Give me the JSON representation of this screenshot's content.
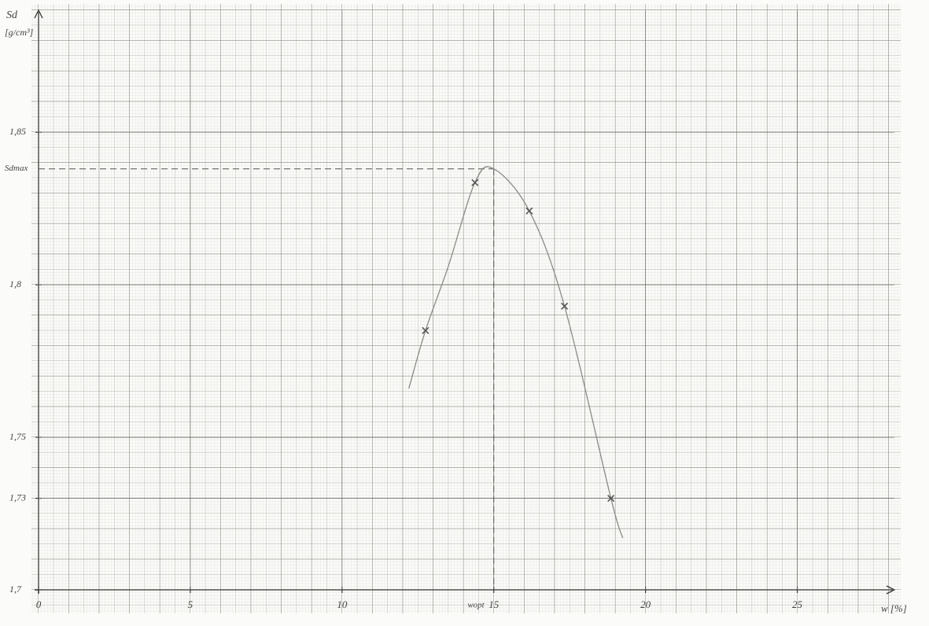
{
  "chart_data": {
    "type": "scatter",
    "y_label": "Sd",
    "y_unit": "[g/cm³]",
    "x_label": "w [%]",
    "xlim": [
      0,
      28.2
    ],
    "ylim": [
      1.7,
      1.89
    ],
    "xticks": [
      0,
      5,
      10,
      15,
      20,
      25
    ],
    "yticks": [
      {
        "value": 1.7,
        "label": "1,7"
      },
      {
        "value": 1.73,
        "label": "1,73"
      },
      {
        "value": 1.75,
        "label": "1,75"
      },
      {
        "value": 1.8,
        "label": "1,8"
      },
      {
        "value": 1.85,
        "label": "1,85"
      }
    ],
    "grid": true,
    "series": [
      {
        "kind": "points",
        "color": "#555555",
        "x": [
          12.75,
          14.38,
          16.17,
          17.33,
          18.86
        ],
        "values": [
          1.785,
          1.8335,
          1.8242,
          1.793,
          1.73
        ]
      },
      {
        "kind": "curve",
        "color": "#8a8a8a",
        "x": [
          12.2,
          12.75,
          13.5,
          14.38,
          15.0,
          16.17,
          17.33,
          18.86,
          19.25
        ],
        "values": [
          1.766,
          1.785,
          1.806,
          1.8335,
          1.838,
          1.8242,
          1.793,
          1.73,
          1.717
        ]
      }
    ],
    "annotations": [
      {
        "text": "Sdmax",
        "y": 1.838
      },
      {
        "text": "wopt",
        "x": 15.0
      }
    ]
  }
}
